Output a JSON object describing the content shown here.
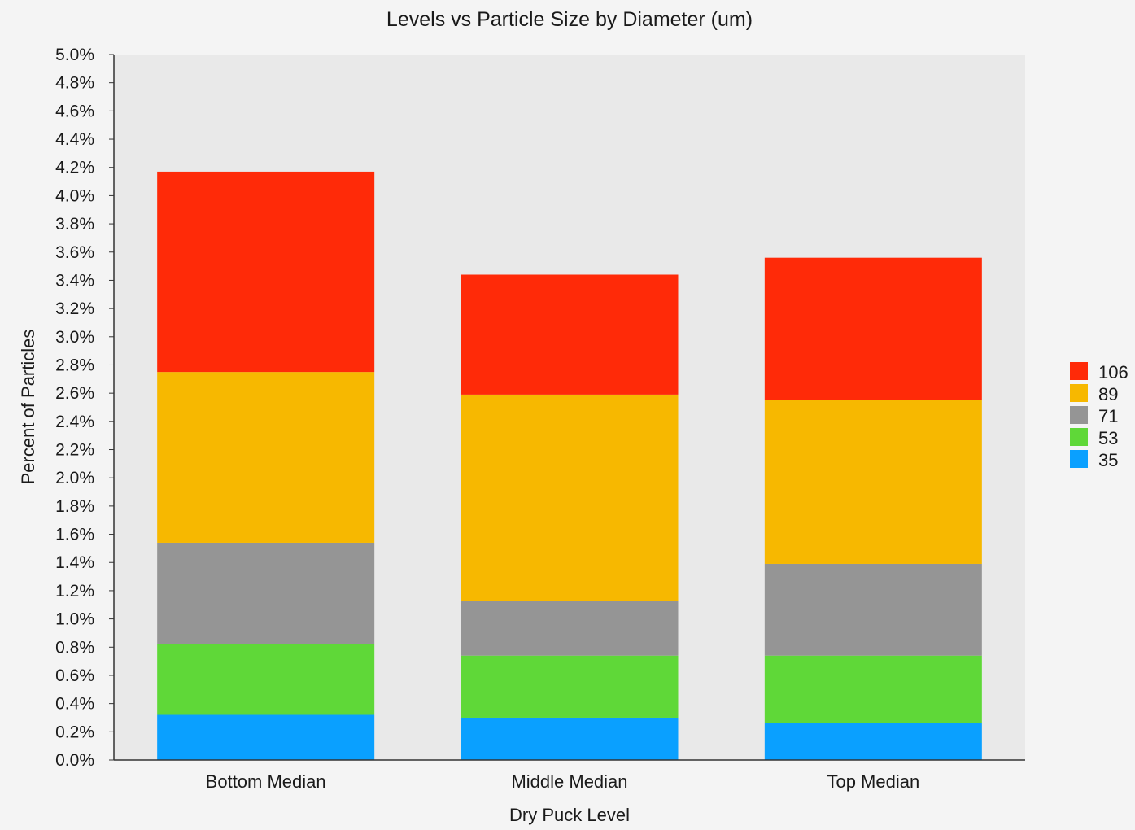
{
  "chart_data": {
    "type": "bar",
    "stacked": true,
    "title": "Levels vs Particle Size by Diameter (um)",
    "xlabel": "Dry Puck Level",
    "ylabel": "Percent of Particles",
    "ylim": [
      0,
      5.0
    ],
    "ytick_step": 0.2,
    "ytick_format": "percent_1dp",
    "grid": false,
    "legend_position": "right",
    "categories": [
      "Bottom Median",
      "Middle Median",
      "Top Median"
    ],
    "series": [
      {
        "name": "35",
        "color": "#0aa0ff",
        "values": [
          0.32,
          0.3,
          0.26
        ]
      },
      {
        "name": "53",
        "color": "#5fd838",
        "values": [
          0.5,
          0.44,
          0.48
        ]
      },
      {
        "name": "71",
        "color": "#959595",
        "values": [
          0.72,
          0.39,
          0.65
        ]
      },
      {
        "name": "89",
        "color": "#f7b800",
        "values": [
          1.21,
          1.46,
          1.16
        ]
      },
      {
        "name": "106",
        "color": "#ff2a08",
        "values": [
          1.42,
          0.85,
          1.01
        ]
      }
    ]
  }
}
